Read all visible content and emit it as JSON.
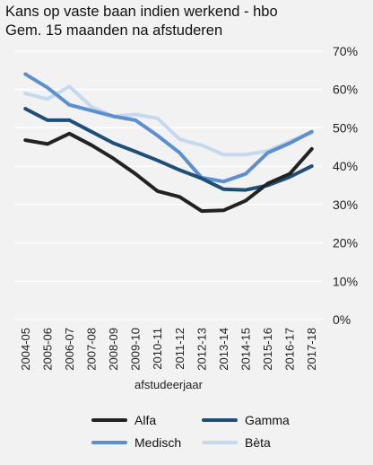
{
  "title_line1": "Kans op vaste baan indien werkend - hbo",
  "title_line2": "Gem. 15 maanden na afstuderen",
  "chart_data": {
    "type": "line",
    "title": "Kans op vaste baan indien werkend - hbo",
    "subtitle": "Gem. 15 maanden na afstuderen",
    "xlabel": "afstudeerjaar",
    "ylabel": "",
    "ylim": [
      0,
      70
    ],
    "yticks": [
      "0%",
      "10%",
      "20%",
      "30%",
      "40%",
      "50%",
      "60%",
      "70%"
    ],
    "y_axis_position": "right",
    "grid": true,
    "legend_position": "bottom",
    "categories": [
      "2004-05",
      "2005-06",
      "2006-07",
      "2007-08",
      "2008-09",
      "2009-10",
      "2010-11",
      "2011-12",
      "2012-13",
      "2013-14",
      "2014-15",
      "2015-16",
      "2016-17",
      "2017-18"
    ],
    "series": [
      {
        "name": "Alfa",
        "color": "#222222",
        "values": [
          46.8,
          45.8,
          48.5,
          45.5,
          42.0,
          38.0,
          33.5,
          32.0,
          28.3,
          28.5,
          31.0,
          35.5,
          38.0,
          44.5
        ]
      },
      {
        "name": "Gamma",
        "color": "#1f4e79",
        "values": [
          55.0,
          52.0,
          52.0,
          49.0,
          46.0,
          43.8,
          41.5,
          39.0,
          36.8,
          34.0,
          33.8,
          35.0,
          37.2,
          40.0
        ]
      },
      {
        "name": "Medisch",
        "color": "#5b8fd0",
        "values": [
          64.0,
          60.5,
          56.0,
          54.5,
          53.0,
          52.0,
          48.0,
          43.5,
          37.0,
          36.0,
          38.0,
          43.5,
          46.0,
          49.0
        ]
      },
      {
        "name": "Bèta",
        "color": "#c5d9ef",
        "values": [
          59.0,
          57.5,
          60.8,
          55.5,
          53.0,
          53.5,
          52.5,
          47.0,
          45.5,
          43.0,
          43.0,
          44.0,
          46.5,
          48.8
        ]
      }
    ]
  }
}
